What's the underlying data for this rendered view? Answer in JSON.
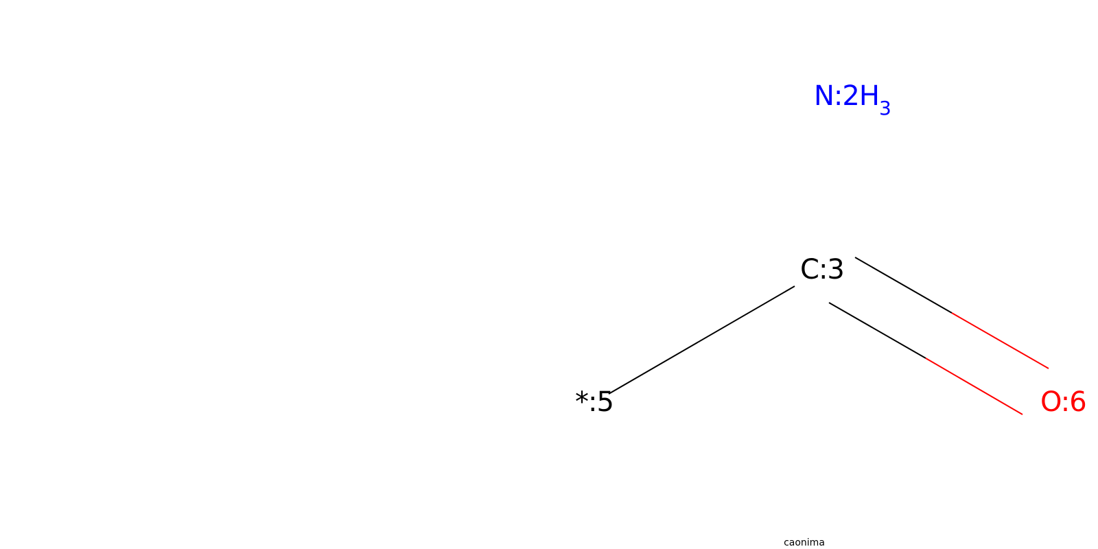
{
  "molecule": {
    "atoms": {
      "n2": {
        "symbol": "N",
        "map": "2",
        "hydrogen": "H",
        "hcount": "3",
        "color": "#0000FF"
      },
      "c3": {
        "symbol": "C",
        "map": "3",
        "color": "#000000"
      },
      "a5": {
        "symbol": "*",
        "map": "5",
        "color": "#000000"
      },
      "o6": {
        "symbol": "O",
        "map": "6",
        "color": "#FF0000"
      }
    },
    "bonds": [
      {
        "from": "c3",
        "to": "a5",
        "order": "single"
      },
      {
        "from": "c3",
        "to": "o6",
        "order": "double"
      }
    ],
    "colors": {
      "carbon": "#000000",
      "nitrogen": "#0000FF",
      "oxygen": "#FF0000"
    }
  },
  "legend": "caonima"
}
